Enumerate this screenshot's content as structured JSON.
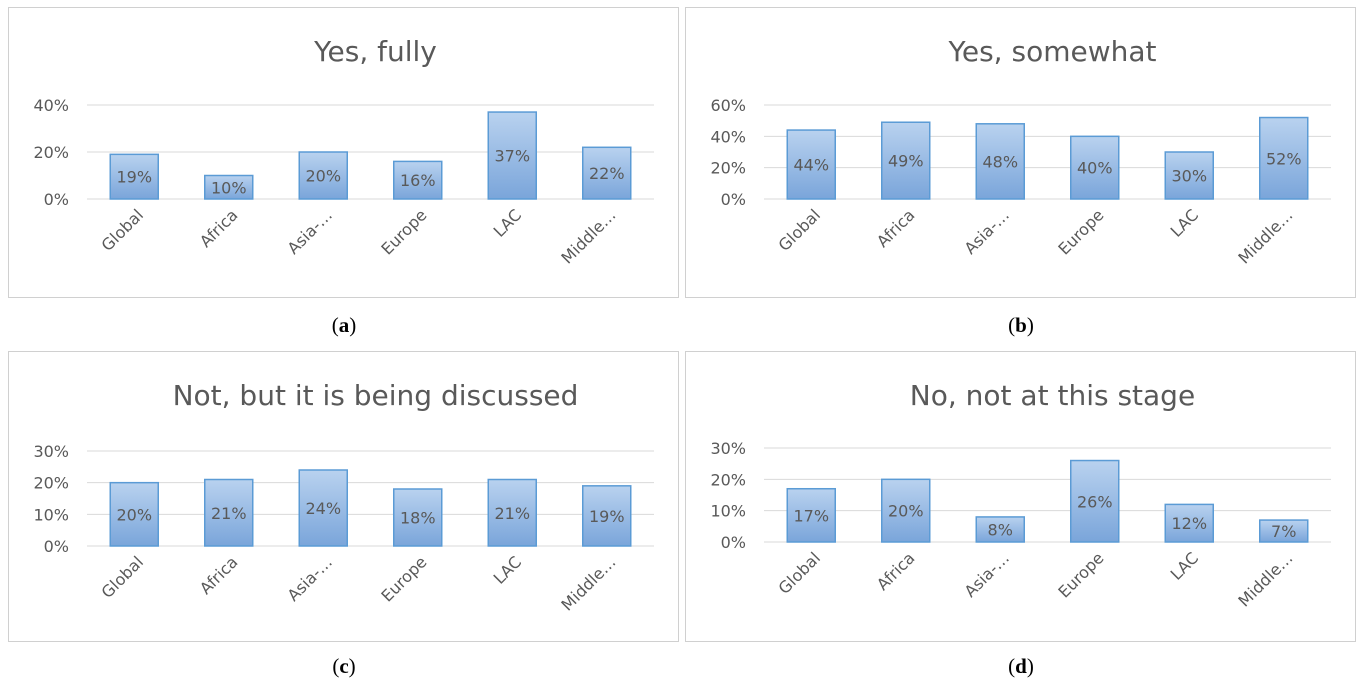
{
  "captions": [
    "a",
    "b",
    "c",
    "d"
  ],
  "style": {
    "bar_top": "#b9d2ef",
    "bar_bottom": "#7aa5da",
    "bar_stroke": "#5b9bd5",
    "grid": "#d9d9d9",
    "text": "#595959"
  },
  "chart_data": [
    {
      "type": "bar",
      "title": "Yes, fully",
      "categories": [
        "Global",
        "Africa",
        "Asia-…",
        "Europe",
        "LAC",
        "Middle…"
      ],
      "values": [
        19,
        10,
        20,
        16,
        37,
        22
      ],
      "data_labels": [
        "19%",
        "10%",
        "20%",
        "16%",
        "37%",
        "22%"
      ],
      "ylim": [
        0,
        40
      ],
      "yticks": [
        "0%",
        "20%",
        "40%"
      ],
      "grid": true
    },
    {
      "type": "bar",
      "title": "Yes, somewhat",
      "categories": [
        "Global",
        "Africa",
        "Asia-…",
        "Europe",
        "LAC",
        "Middle…"
      ],
      "values": [
        44,
        49,
        48,
        40,
        30,
        52
      ],
      "data_labels": [
        "44%",
        "49%",
        "48%",
        "40%",
        "30%",
        "52%"
      ],
      "ylim": [
        0,
        60
      ],
      "yticks": [
        "0%",
        "20%",
        "40%",
        "60%"
      ],
      "grid": true
    },
    {
      "type": "bar",
      "title": "Not, but it is being discussed",
      "categories": [
        "Global",
        "Africa",
        "Asia-…",
        "Europe",
        "LAC",
        "Middle…"
      ],
      "values": [
        20,
        21,
        24,
        18,
        21,
        19
      ],
      "data_labels": [
        "20%",
        "21%",
        "24%",
        "18%",
        "21%",
        "19%"
      ],
      "ylim": [
        0,
        30
      ],
      "yticks": [
        "0%",
        "10%",
        "20%",
        "30%"
      ],
      "grid": true
    },
    {
      "type": "bar",
      "title": "No, not at this stage",
      "categories": [
        "Global",
        "Africa",
        "Asia-…",
        "Europe",
        "LAC",
        "Middle…"
      ],
      "values": [
        17,
        20,
        8,
        26,
        12,
        7
      ],
      "data_labels": [
        "17%",
        "20%",
        "8%",
        "26%",
        "12%",
        "7%"
      ],
      "ylim": [
        0,
        30
      ],
      "yticks": [
        "0%",
        "10%",
        "20%",
        "30%"
      ],
      "grid": true
    }
  ]
}
